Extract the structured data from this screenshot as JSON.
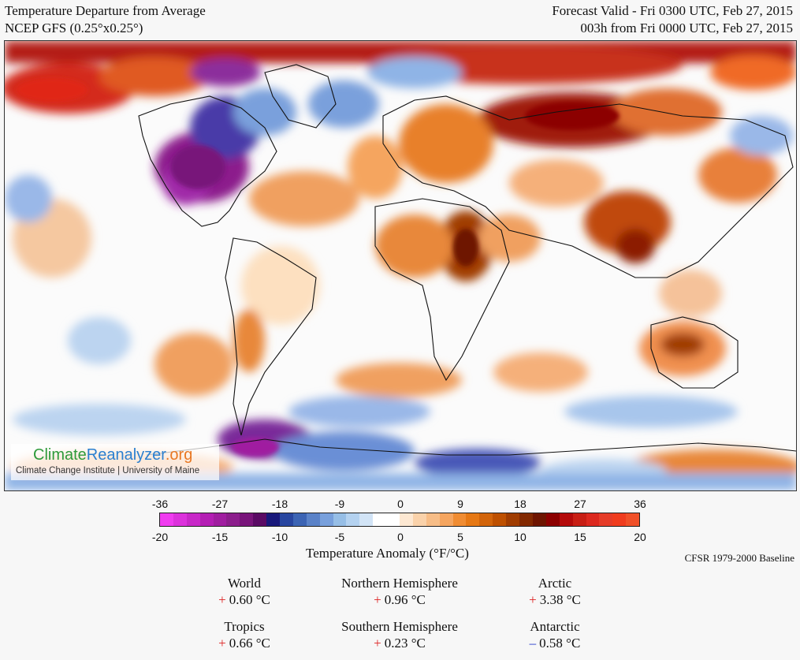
{
  "header": {
    "title": "Temperature Departure from Average",
    "model": "NCEP GFS (0.25°x0.25°)",
    "valid": "Forecast Valid - Fri 0300 UTC, Feb 27, 2015",
    "lead": "003h from Fri 0000 UTC, Feb 27, 2015"
  },
  "logo": {
    "part1": "Climate",
    "part2": "Reanalyzer",
    "part3": ".org",
    "subtitle": "Climate Change Institute | University of Maine"
  },
  "legend": {
    "fahrenheit_ticks": [
      "-36",
      "-27",
      "-18",
      "-9",
      "0",
      "9",
      "18",
      "27",
      "36"
    ],
    "celsius_ticks": [
      "-20",
      "-15",
      "-10",
      "-5",
      "0",
      "5",
      "10",
      "15",
      "20"
    ],
    "title": "Temperature Anomaly (°F/°C)",
    "baseline": "CFSR 1979-2000 Baseline",
    "colors": [
      "#f03cf0",
      "#dc32dc",
      "#c828c8",
      "#b41eb4",
      "#a01ea0",
      "#8c1e8c",
      "#78147a",
      "#5a0a64",
      "#18187a",
      "#2846a0",
      "#3c64b4",
      "#5a82c8",
      "#78a0dc",
      "#96bee6",
      "#b4d2f0",
      "#d2e4f6",
      "#ffffff",
      "#ffffff",
      "#fde8d2",
      "#fad2aa",
      "#f7bd87",
      "#f5a55f",
      "#f08c32",
      "#e67814",
      "#d2640a",
      "#be5000",
      "#a03c00",
      "#822800",
      "#6e1400",
      "#8c0000",
      "#b40a0a",
      "#c81e14",
      "#dc281e",
      "#e63c28",
      "#f03c1e",
      "#f05028"
    ]
  },
  "stats": [
    {
      "name": "World",
      "sign": "+",
      "value": "0.60 °C"
    },
    {
      "name": "Northern Hemisphere",
      "sign": "+",
      "value": "0.96 °C"
    },
    {
      "name": "Arctic",
      "sign": "+",
      "value": "3.38 °C"
    },
    {
      "name": "Tropics",
      "sign": "+",
      "value": "0.66 °C"
    },
    {
      "name": "Southern Hemisphere",
      "sign": "+",
      "value": "0.23 °C"
    },
    {
      "name": "Antarctic",
      "sign": "–",
      "value": "0.58 °C"
    }
  ]
}
